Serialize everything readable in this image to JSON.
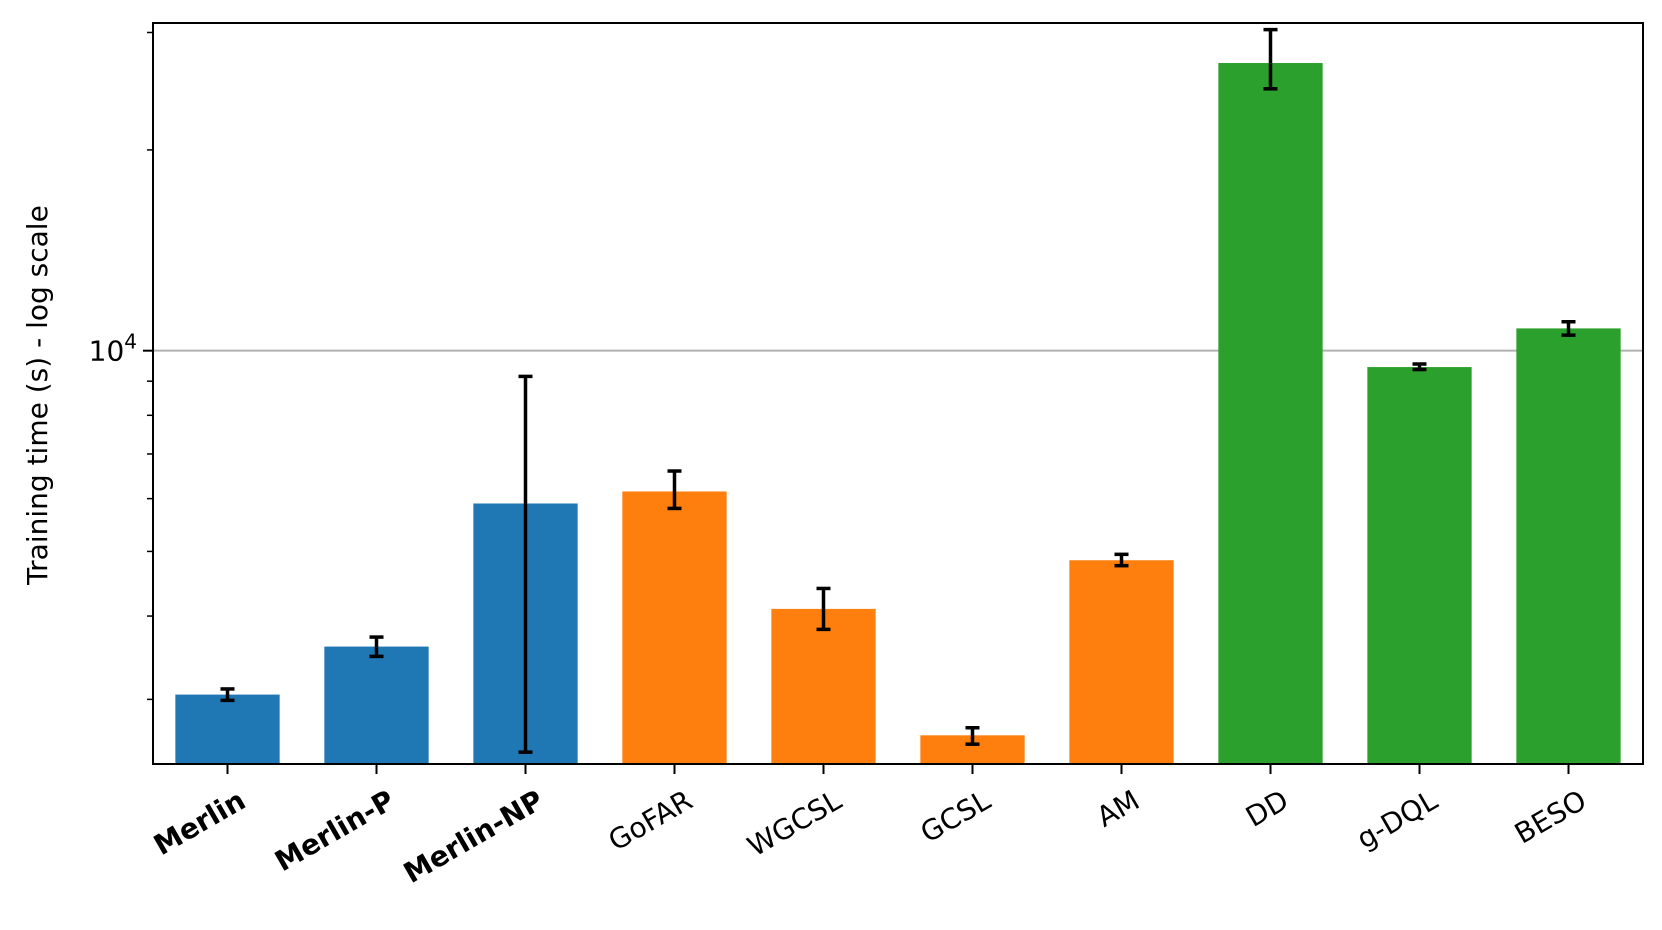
{
  "chart_data": {
    "type": "bar",
    "ylabel": "Training time (s) - log scale",
    "yscale": "log",
    "ylim": [
      2400,
      31000
    ],
    "yticks": [
      {
        "base": "10",
        "exponent": "4",
        "value": 10000
      }
    ],
    "grid": "horizontal at major ticks",
    "legend": "none",
    "categories": [
      "Merlin",
      "Merlin-P",
      "Merlin-NP",
      "GoFAR",
      "WGCSL",
      "GCSL",
      "AM",
      "DD",
      "g-DQL",
      "BESO"
    ],
    "bold_categories": [
      "Merlin",
      "Merlin-P",
      "Merlin-NP"
    ],
    "values": [
      3050,
      3600,
      5900,
      6150,
      4100,
      2650,
      4850,
      27000,
      9450,
      10800
    ],
    "error_low": [
      2990,
      3480,
      2500,
      5800,
      3820,
      2570,
      4760,
      24700,
      9370,
      10550
    ],
    "error_high": [
      3110,
      3720,
      9150,
      6600,
      4400,
      2720,
      4950,
      30300,
      9550,
      11050
    ],
    "colors": [
      "#1f77b4",
      "#1f77b4",
      "#1f77b4",
      "#ff7f0e",
      "#ff7f0e",
      "#ff7f0e",
      "#ff7f0e",
      "#2ca02c",
      "#2ca02c",
      "#2ca02c"
    ],
    "grid_color": "#b0b0b0"
  }
}
